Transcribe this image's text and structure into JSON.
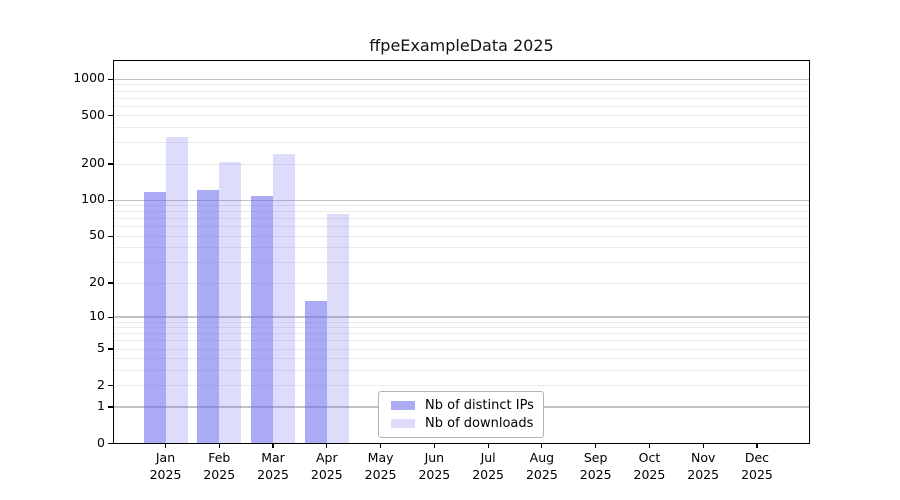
{
  "chart_data": {
    "type": "bar",
    "title": "ffpeExampleData 2025",
    "categories": [
      "Jan",
      "Feb",
      "Mar",
      "Apr",
      "May",
      "Jun",
      "Jul",
      "Aug",
      "Sep",
      "Oct",
      "Nov",
      "Dec"
    ],
    "year_label": "2025",
    "series": [
      {
        "name": "Nb of distinct IPs",
        "values": [
          117,
          122,
          109,
          14,
          null,
          null,
          null,
          null,
          null,
          null,
          null,
          null
        ]
      },
      {
        "name": "Nb of downloads",
        "values": [
          335,
          208,
          242,
          77,
          null,
          null,
          null,
          null,
          null,
          null,
          null,
          null
        ]
      }
    ],
    "y_ticks": [
      0,
      1,
      2,
      5,
      10,
      20,
      50,
      100,
      200,
      500,
      1000
    ],
    "y_scale": "log1p",
    "ylim": [
      0,
      1450
    ],
    "grid": true,
    "legend_position": "lower center-left inside plot"
  },
  "colors": {
    "bar_distinct_ips": "rgba(100,100,237,0.55)",
    "bar_downloads": "rgba(100,100,237,0.22)",
    "grid_major": "#c3c3c3",
    "grid_minor": "#ebebeb",
    "spine": "#000000",
    "legend_border": "#b3b3b3",
    "text": "#111111"
  }
}
